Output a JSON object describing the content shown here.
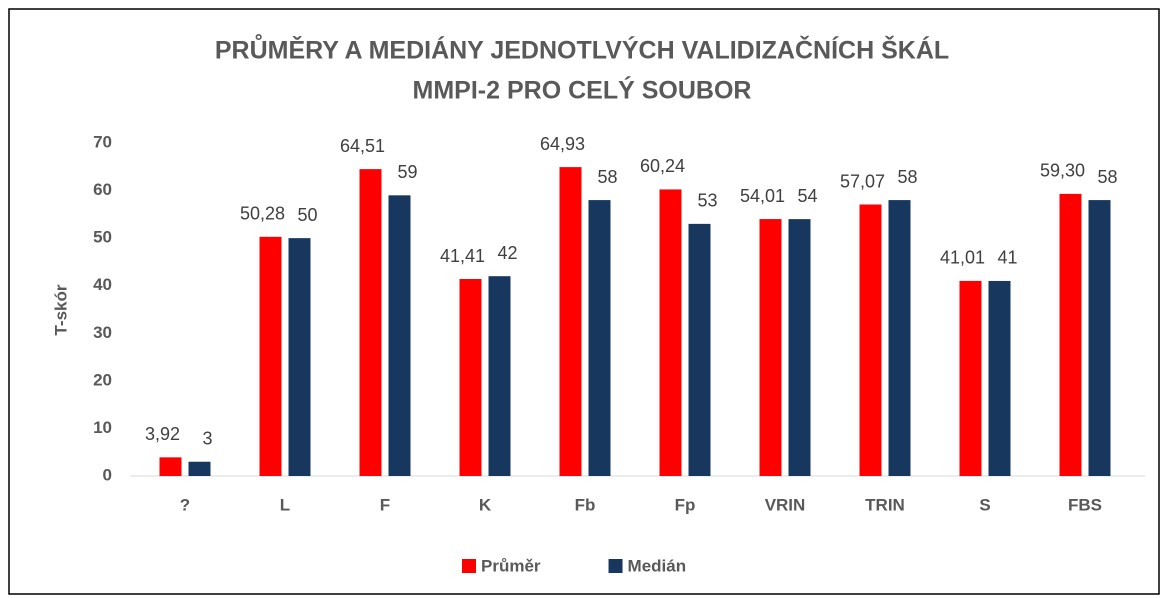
{
  "chart_data": {
    "type": "bar",
    "title": [
      "PRŮMĚRY A MEDIÁNY JEDNOTLVÝCH VALIDIZAČNÍCH ŠKÁL",
      "MMPI-2 PRO CELÝ SOUBOR"
    ],
    "y_label": "T-skór",
    "categories": [
      "?",
      "L",
      "F",
      "K",
      "Fb",
      "Fp",
      "VRIN",
      "TRIN",
      "S",
      "FBS"
    ],
    "series": [
      {
        "name": "Průměr",
        "color": "#ff0000",
        "values": [
          3.92,
          50.28,
          64.51,
          41.41,
          64.93,
          60.24,
          54.01,
          57.07,
          41.01,
          59.3
        ],
        "value_labels": [
          "3,92",
          "50,28",
          "64,51",
          "41,41",
          "64,93",
          "60,24",
          "54,01",
          "57,07",
          "41,01",
          "59,30"
        ]
      },
      {
        "name": "Medián",
        "color": "#17375e",
        "values": [
          3,
          50,
          59,
          42,
          58,
          53,
          54,
          58,
          41,
          58
        ]
      }
    ],
    "ylim": [
      0,
      70
    ],
    "yticks": [
      0,
      10,
      20,
      30,
      40,
      50,
      60,
      70
    ],
    "grid": false,
    "legend": "bottom"
  }
}
